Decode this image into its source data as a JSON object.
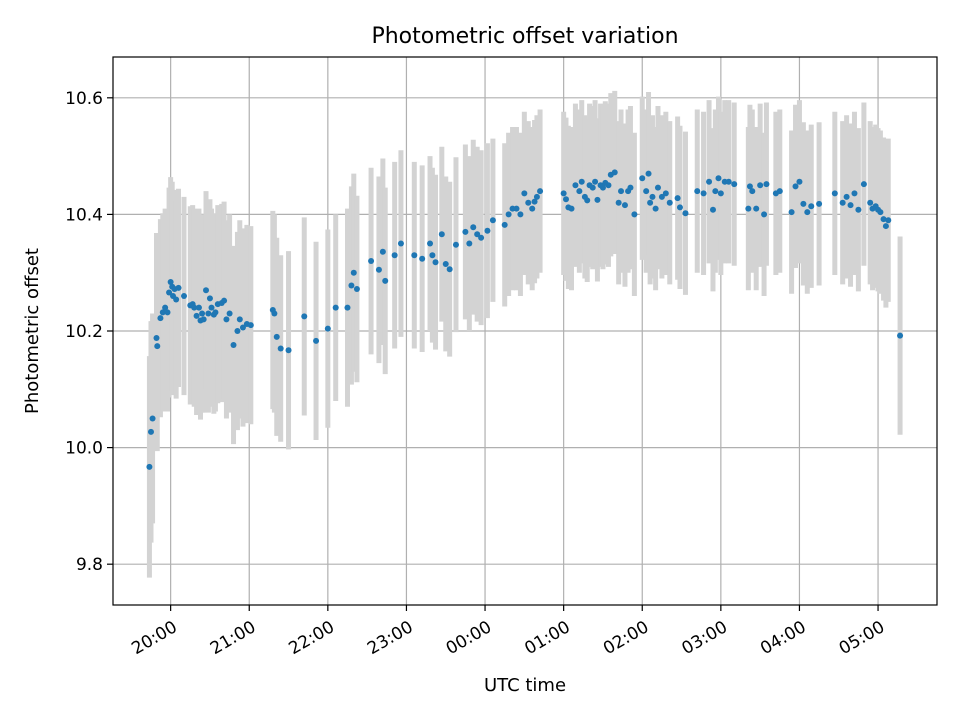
{
  "chart_data": {
    "type": "scatter",
    "title": "Photometric offset variation",
    "xlabel": "UTC time",
    "ylabel": "Photometric offset",
    "x_unit": "UTC time (HH:MM, hours after 00:00 of the first night; values above 24 fall on the next day)",
    "xlim": [
      "19:16",
      "05:45"
    ],
    "ylim": [
      9.73,
      10.67
    ],
    "x_ticks": [
      "20:00",
      "21:00",
      "22:00",
      "23:00",
      "00:00",
      "01:00",
      "02:00",
      "03:00",
      "04:00",
      "05:00"
    ],
    "y_ticks": [
      9.8,
      10.0,
      10.2,
      10.4,
      10.6
    ],
    "grid": true,
    "colors": {
      "points": "#1f77b4",
      "error_bars": "#d3d3d3"
    },
    "series": [
      {
        "points": [
          [
            19.73,
            9.967,
            0.19
          ],
          [
            19.75,
            10.027,
            0.19
          ],
          [
            19.77,
            10.05,
            0.18
          ],
          [
            19.82,
            10.188,
            0.18
          ],
          [
            19.83,
            10.174,
            0.18
          ],
          [
            19.87,
            10.222,
            0.17
          ],
          [
            19.9,
            10.232,
            0.17
          ],
          [
            19.93,
            10.24,
            0.17
          ],
          [
            19.96,
            10.232,
            0.17
          ],
          [
            19.98,
            10.266,
            0.18
          ],
          [
            20.0,
            10.284,
            0.18
          ],
          [
            20.02,
            10.276,
            0.18
          ],
          [
            20.03,
            10.26,
            0.17
          ],
          [
            20.05,
            10.272,
            0.17
          ],
          [
            20.07,
            10.254,
            0.17
          ],
          [
            20.1,
            10.274,
            0.17
          ],
          [
            20.17,
            10.26,
            0.17
          ],
          [
            20.25,
            10.244,
            0.17
          ],
          [
            20.28,
            10.246,
            0.17
          ],
          [
            20.3,
            10.24,
            0.17
          ],
          [
            20.33,
            10.226,
            0.17
          ],
          [
            20.36,
            10.24,
            0.17
          ],
          [
            20.38,
            10.218,
            0.17
          ],
          [
            20.4,
            10.23,
            0.17
          ],
          [
            20.42,
            10.22,
            0.16
          ],
          [
            20.45,
            10.27,
            0.17
          ],
          [
            20.48,
            10.23,
            0.17
          ],
          [
            20.5,
            10.256,
            0.17
          ],
          [
            20.52,
            10.24,
            0.17
          ],
          [
            20.55,
            10.228,
            0.17
          ],
          [
            20.57,
            10.232,
            0.17
          ],
          [
            20.6,
            10.246,
            0.17
          ],
          [
            20.65,
            10.248,
            0.17
          ],
          [
            20.68,
            10.252,
            0.17
          ],
          [
            20.71,
            10.22,
            0.17
          ],
          [
            20.75,
            10.23,
            0.17
          ],
          [
            20.8,
            10.176,
            0.17
          ],
          [
            20.85,
            10.2,
            0.17
          ],
          [
            20.88,
            10.22,
            0.17
          ],
          [
            20.92,
            10.206,
            0.17
          ],
          [
            20.97,
            10.212,
            0.17
          ],
          [
            21.02,
            10.21,
            0.17
          ],
          [
            21.3,
            10.236,
            0.17
          ],
          [
            21.32,
            10.23,
            0.17
          ],
          [
            21.35,
            10.19,
            0.17
          ],
          [
            21.4,
            10.17,
            0.16
          ],
          [
            21.5,
            10.167,
            0.17
          ],
          [
            21.7,
            10.225,
            0.17
          ],
          [
            21.85,
            10.183,
            0.17
          ],
          [
            22.0,
            10.204,
            0.17
          ],
          [
            22.1,
            10.24,
            0.16
          ],
          [
            22.25,
            10.24,
            0.17
          ],
          [
            22.3,
            10.278,
            0.17
          ],
          [
            22.33,
            10.3,
            0.17
          ],
          [
            22.37,
            10.272,
            0.16
          ],
          [
            22.55,
            10.32,
            0.16
          ],
          [
            22.65,
            10.305,
            0.16
          ],
          [
            22.7,
            10.336,
            0.16
          ],
          [
            22.73,
            10.286,
            0.16
          ],
          [
            22.85,
            10.33,
            0.16
          ],
          [
            22.93,
            10.35,
            0.16
          ],
          [
            23.1,
            10.33,
            0.16
          ],
          [
            23.2,
            10.324,
            0.16
          ],
          [
            23.3,
            10.35,
            0.15
          ],
          [
            23.33,
            10.33,
            0.15
          ],
          [
            23.37,
            10.318,
            0.15
          ],
          [
            23.45,
            10.366,
            0.15
          ],
          [
            23.5,
            10.315,
            0.15
          ],
          [
            23.55,
            10.306,
            0.15
          ],
          [
            23.63,
            10.348,
            0.15
          ],
          [
            23.75,
            10.37,
            0.15
          ],
          [
            23.8,
            10.35,
            0.15
          ],
          [
            23.85,
            10.378,
            0.15
          ],
          [
            23.9,
            10.366,
            0.15
          ],
          [
            23.95,
            10.36,
            0.15
          ],
          [
            24.03,
            10.372,
            0.15
          ],
          [
            24.1,
            10.39,
            0.14
          ],
          [
            24.25,
            10.382,
            0.14
          ],
          [
            24.3,
            10.4,
            0.14
          ],
          [
            24.35,
            10.41,
            0.14
          ],
          [
            24.4,
            10.41,
            0.14
          ],
          [
            24.45,
            10.4,
            0.14
          ],
          [
            24.5,
            10.436,
            0.14
          ],
          [
            24.55,
            10.42,
            0.14
          ],
          [
            24.6,
            10.41,
            0.14
          ],
          [
            24.63,
            10.422,
            0.14
          ],
          [
            24.66,
            10.43,
            0.14
          ],
          [
            24.7,
            10.44,
            0.14
          ],
          [
            25.0,
            10.436,
            0.14
          ],
          [
            25.03,
            10.426,
            0.14
          ],
          [
            25.06,
            10.412,
            0.14
          ],
          [
            25.1,
            10.41,
            0.14
          ],
          [
            25.15,
            10.45,
            0.14
          ],
          [
            25.2,
            10.44,
            0.14
          ],
          [
            25.23,
            10.456,
            0.14
          ],
          [
            25.27,
            10.43,
            0.14
          ],
          [
            25.3,
            10.424,
            0.14
          ],
          [
            25.33,
            10.45,
            0.14
          ],
          [
            25.37,
            10.446,
            0.14
          ],
          [
            25.4,
            10.456,
            0.14
          ],
          [
            25.43,
            10.425,
            0.14
          ],
          [
            25.47,
            10.45,
            0.14
          ],
          [
            25.5,
            10.446,
            0.14
          ],
          [
            25.53,
            10.454,
            0.14
          ],
          [
            25.57,
            10.45,
            0.14
          ],
          [
            25.6,
            10.468,
            0.14
          ],
          [
            25.65,
            10.472,
            0.14
          ],
          [
            25.7,
            10.42,
            0.14
          ],
          [
            25.73,
            10.44,
            0.14
          ],
          [
            25.78,
            10.416,
            0.14
          ],
          [
            25.82,
            10.44,
            0.14
          ],
          [
            25.85,
            10.446,
            0.14
          ],
          [
            25.9,
            10.4,
            0.14
          ],
          [
            26.0,
            10.462,
            0.14
          ],
          [
            26.05,
            10.44,
            0.14
          ],
          [
            26.08,
            10.47,
            0.14
          ],
          [
            26.1,
            10.42,
            0.14
          ],
          [
            26.13,
            10.43,
            0.14
          ],
          [
            26.17,
            10.41,
            0.14
          ],
          [
            26.2,
            10.446,
            0.14
          ],
          [
            26.25,
            10.43,
            0.14
          ],
          [
            26.3,
            10.436,
            0.14
          ],
          [
            26.35,
            10.42,
            0.14
          ],
          [
            26.45,
            10.428,
            0.14
          ],
          [
            26.48,
            10.412,
            0.14
          ],
          [
            26.55,
            10.402,
            0.14
          ],
          [
            26.7,
            10.44,
            0.14
          ],
          [
            26.78,
            10.436,
            0.14
          ],
          [
            26.85,
            10.456,
            0.14
          ],
          [
            26.9,
            10.408,
            0.14
          ],
          [
            26.93,
            10.44,
            0.14
          ],
          [
            26.97,
            10.462,
            0.14
          ],
          [
            27.0,
            10.436,
            0.14
          ],
          [
            27.05,
            10.456,
            0.14
          ],
          [
            27.1,
            10.456,
            0.14
          ],
          [
            27.17,
            10.452,
            0.14
          ],
          [
            27.35,
            10.41,
            0.14
          ],
          [
            27.37,
            10.448,
            0.14
          ],
          [
            27.4,
            10.44,
            0.14
          ],
          [
            27.45,
            10.41,
            0.14
          ],
          [
            27.5,
            10.45,
            0.14
          ],
          [
            27.55,
            10.4,
            0.14
          ],
          [
            27.58,
            10.452,
            0.14
          ],
          [
            27.7,
            10.436,
            0.14
          ],
          [
            27.75,
            10.44,
            0.14
          ],
          [
            27.9,
            10.404,
            0.14
          ],
          [
            27.95,
            10.448,
            0.14
          ],
          [
            28.0,
            10.456,
            0.14
          ],
          [
            28.05,
            10.418,
            0.14
          ],
          [
            28.1,
            10.404,
            0.14
          ],
          [
            28.15,
            10.414,
            0.14
          ],
          [
            28.25,
            10.418,
            0.14
          ],
          [
            28.45,
            10.436,
            0.14
          ],
          [
            28.55,
            10.42,
            0.14
          ],
          [
            28.6,
            10.43,
            0.14
          ],
          [
            28.65,
            10.416,
            0.14
          ],
          [
            28.7,
            10.436,
            0.14
          ],
          [
            28.75,
            10.408,
            0.14
          ],
          [
            28.82,
            10.452,
            0.14
          ],
          [
            28.9,
            10.42,
            0.14
          ],
          [
            28.93,
            10.41,
            0.14
          ],
          [
            28.97,
            10.414,
            0.14
          ],
          [
            29.0,
            10.408,
            0.14
          ],
          [
            29.03,
            10.404,
            0.14
          ],
          [
            29.07,
            10.392,
            0.14
          ],
          [
            29.1,
            10.38,
            0.14
          ],
          [
            29.13,
            10.39,
            0.14
          ],
          [
            29.28,
            10.192,
            0.17
          ]
        ]
      }
    ]
  }
}
